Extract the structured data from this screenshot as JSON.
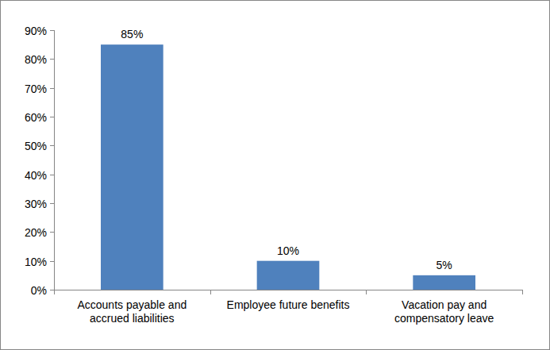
{
  "chart_data": {
    "type": "bar",
    "categories": [
      "Accounts payable and accrued liabilities",
      "Employee future benefits",
      "Vacation pay and compensatory leave"
    ],
    "values": [
      85,
      10,
      5
    ],
    "value_labels": [
      "85%",
      "10%",
      "5%"
    ],
    "color": "#4f81bd",
    "ylim": [
      0,
      90
    ],
    "yticks": [
      {
        "value": 0,
        "label": "0%"
      },
      {
        "value": 10,
        "label": "10%"
      },
      {
        "value": 20,
        "label": "20%"
      },
      {
        "value": 30,
        "label": "30%"
      },
      {
        "value": 40,
        "label": "40%"
      },
      {
        "value": 50,
        "label": "50%"
      },
      {
        "value": 60,
        "label": "60%"
      },
      {
        "value": 70,
        "label": "70%"
      },
      {
        "value": 80,
        "label": "80%"
      },
      {
        "value": 90,
        "label": "90%"
      }
    ],
    "grid": false,
    "data_labels": true
  }
}
